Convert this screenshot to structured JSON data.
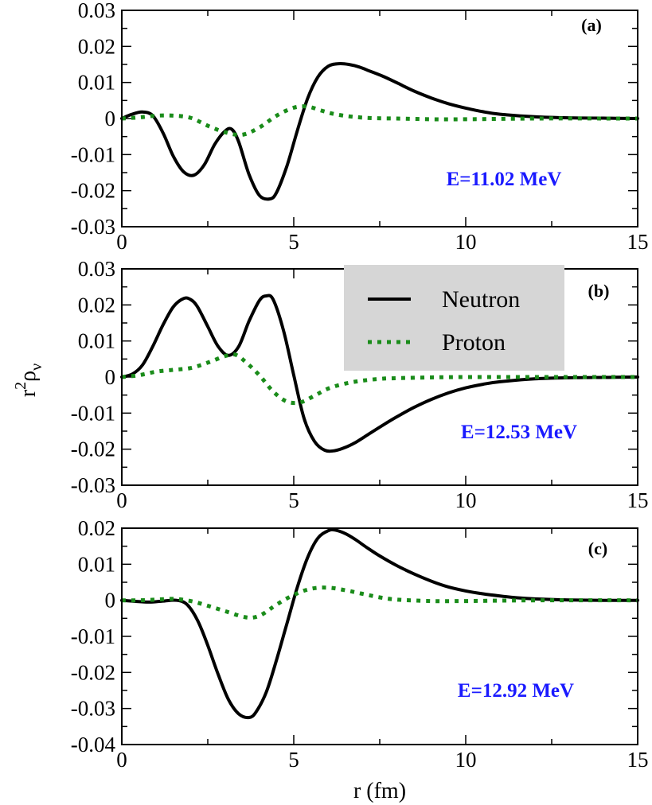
{
  "chart_data": {
    "type": "line",
    "xlabel": "r (fm)",
    "ylabel_base": "r",
    "ylabel_sup": "2",
    "ylabel_greek": "ρ",
    "ylabel_sub": "ν",
    "xlim": [
      0,
      15
    ],
    "xticks": [
      0,
      5,
      10,
      15
    ],
    "xtick_labels": [
      "0",
      "5",
      "10",
      "15"
    ],
    "legend": {
      "position": "top-right of panel (b)",
      "entries": [
        {
          "name": "Neutron",
          "color": "#000000",
          "style": "solid"
        },
        {
          "name": "Proton",
          "color": "#1a8c1a",
          "style": "dotted"
        }
      ]
    },
    "panels": [
      {
        "label": "(a)",
        "energy": "E=11.02 MeV",
        "ylim": [
          -0.03,
          0.03
        ],
        "yticks": [
          -0.03,
          -0.02,
          -0.01,
          0,
          0.01,
          0.02,
          0.03
        ],
        "ytick_labels": [
          "-0.03",
          "-0.02",
          "-0.01",
          "0",
          "0.01",
          "0.02",
          "0.03"
        ],
        "series": [
          {
            "name": "Neutron",
            "x": [
              0,
              0.3,
              0.6,
              0.9,
              1.2,
              1.5,
              1.8,
              2.1,
              2.4,
              2.7,
              3.0,
              3.2,
              3.4,
              3.7,
              4.0,
              4.3,
              4.5,
              4.8,
              5.1,
              5.4,
              5.7,
              6.0,
              6.3,
              6.6,
              6.9,
              7.2,
              7.6,
              8.0,
              8.5,
              9.0,
              9.5,
              10.0,
              10.5,
              11.0,
              12.0,
              13.0,
              14.0,
              15.0
            ],
            "y": [
              0,
              0.0012,
              0.0018,
              0.0008,
              -0.004,
              -0.0105,
              -0.0148,
              -0.0157,
              -0.0128,
              -0.0072,
              -0.0035,
              -0.003,
              -0.0065,
              -0.0155,
              -0.0213,
              -0.0223,
              -0.0205,
              -0.0132,
              -0.0035,
              0.0055,
              0.0115,
              0.0145,
              0.0152,
              0.015,
              0.0143,
              0.0132,
              0.0117,
              0.0099,
              0.0076,
              0.0057,
              0.0041,
              0.0029,
              0.0019,
              0.0012,
              0.0005,
              0.0002,
              0.0001,
              0
            ]
          },
          {
            "name": "Proton",
            "x": [
              0,
              0.5,
              1.0,
              1.5,
              2.0,
              2.5,
              3.0,
              3.5,
              4.0,
              4.5,
              5.0,
              5.4,
              5.8,
              6.2,
              6.7,
              7.3,
              8.0,
              9.0,
              10.0,
              12.0,
              15.0
            ],
            "y": [
              0,
              0.0003,
              0.0008,
              0.0008,
              0.0002,
              -0.002,
              -0.0038,
              -0.0045,
              -0.0025,
              0.0008,
              0.003,
              0.0033,
              0.0022,
              0.0012,
              0.0005,
              0.0001,
              0,
              -0.0002,
              -0.0002,
              0,
              0
            ]
          }
        ]
      },
      {
        "label": "(b)",
        "energy": "E=12.53 MeV",
        "ylim": [
          -0.03,
          0.03
        ],
        "yticks": [
          -0.03,
          -0.02,
          -0.01,
          0,
          0.01,
          0.02,
          0.03
        ],
        "ytick_labels": [
          "-0.03",
          "-0.02",
          "-0.01",
          "0",
          "0.01",
          "0.02",
          "0.03"
        ],
        "series": [
          {
            "name": "Neutron",
            "x": [
              0,
              0.3,
              0.6,
              0.9,
              1.2,
              1.5,
              1.8,
              2.0,
              2.2,
              2.5,
              2.8,
              3.1,
              3.4,
              3.7,
              4.0,
              4.2,
              4.4,
              4.7,
              5.0,
              5.3,
              5.6,
              5.9,
              6.2,
              6.5,
              6.8,
              7.2,
              7.6,
              8.0,
              8.5,
              9.0,
              9.5,
              10.0,
              10.5,
              11.0,
              12.0,
              13.0,
              14.0,
              15.0
            ],
            "y": [
              0,
              0.0008,
              0.0033,
              0.0085,
              0.0145,
              0.0195,
              0.0218,
              0.0215,
              0.0195,
              0.014,
              0.0085,
              0.006,
              0.0085,
              0.0155,
              0.0212,
              0.0225,
              0.0215,
              0.013,
              0.0005,
              -0.0115,
              -0.0178,
              -0.0203,
              -0.0204,
              -0.0195,
              -0.0181,
              -0.0157,
              -0.0133,
              -0.011,
              -0.0084,
              -0.0062,
              -0.0044,
              -0.003,
              -0.002,
              -0.0013,
              -0.0005,
              -0.0002,
              -0.0001,
              0
            ]
          },
          {
            "name": "Proton",
            "x": [
              0,
              0.5,
              1.0,
              1.5,
              2.0,
              2.5,
              3.0,
              3.3,
              3.6,
              4.0,
              4.4,
              4.8,
              5.2,
              5.6,
              6.0,
              6.5,
              7.0,
              7.5,
              8.0,
              9.0,
              10.0,
              12.0,
              15.0
            ],
            "y": [
              0,
              0.0005,
              0.0015,
              0.002,
              0.0025,
              0.004,
              0.0058,
              0.0062,
              0.0042,
              0.0005,
              -0.004,
              -0.0068,
              -0.007,
              -0.0052,
              -0.0032,
              -0.0018,
              -0.001,
              -0.0005,
              -0.0003,
              -0.0001,
              0,
              0,
              0
            ]
          }
        ]
      },
      {
        "label": "(c)",
        "energy": "E=12.92 MeV",
        "ylim": [
          -0.04,
          0.02
        ],
        "yticks": [
          -0.04,
          -0.03,
          -0.02,
          -0.01,
          0,
          0.01,
          0.02
        ],
        "ytick_labels": [
          "-0.04",
          "-0.03",
          "-0.02",
          "-0.01",
          "0",
          "0.01",
          "0.02"
        ],
        "series": [
          {
            "name": "Neutron",
            "x": [
              0,
              0.4,
              0.8,
              1.2,
              1.6,
              1.9,
              2.2,
              2.5,
              2.8,
              3.1,
              3.4,
              3.7,
              3.9,
              4.2,
              4.5,
              4.8,
              5.1,
              5.4,
              5.7,
              6.0,
              6.2,
              6.5,
              6.8,
              7.1,
              7.5,
              8.0,
              8.5,
              9.0,
              9.5,
              10.0,
              10.5,
              11.0,
              11.5,
              12.0,
              13.0,
              14.0,
              15.0
            ],
            "y": [
              0,
              -0.0003,
              -0.0005,
              -0.0002,
              0,
              -0.0012,
              -0.0055,
              -0.0125,
              -0.0205,
              -0.0275,
              -0.0315,
              -0.0325,
              -0.031,
              -0.0255,
              -0.0165,
              -0.0065,
              0.0035,
              0.0118,
              0.0172,
              0.0193,
              0.0195,
              0.0185,
              0.0168,
              0.0148,
              0.0123,
              0.0096,
              0.0073,
              0.0053,
              0.0037,
              0.0026,
              0.0018,
              0.0012,
              0.0007,
              0.0004,
              0.0001,
              0,
              0
            ]
          },
          {
            "name": "Proton",
            "x": [
              0,
              0.5,
              1.0,
              1.5,
              2.0,
              2.5,
              3.0,
              3.5,
              3.8,
              4.1,
              4.5,
              5.0,
              5.5,
              6.0,
              6.5,
              7.0,
              7.5,
              8.0,
              9.0,
              10.0,
              12.0,
              15.0
            ],
            "y": [
              0,
              0,
              0.0002,
              0.0004,
              -0.0002,
              -0.0015,
              -0.003,
              -0.0045,
              -0.0048,
              -0.0038,
              -0.0012,
              0.0015,
              0.0032,
              0.0035,
              0.0028,
              0.0018,
              0.0008,
              0.0002,
              -0.0002,
              -0.0002,
              0,
              0
            ]
          }
        ]
      }
    ]
  }
}
